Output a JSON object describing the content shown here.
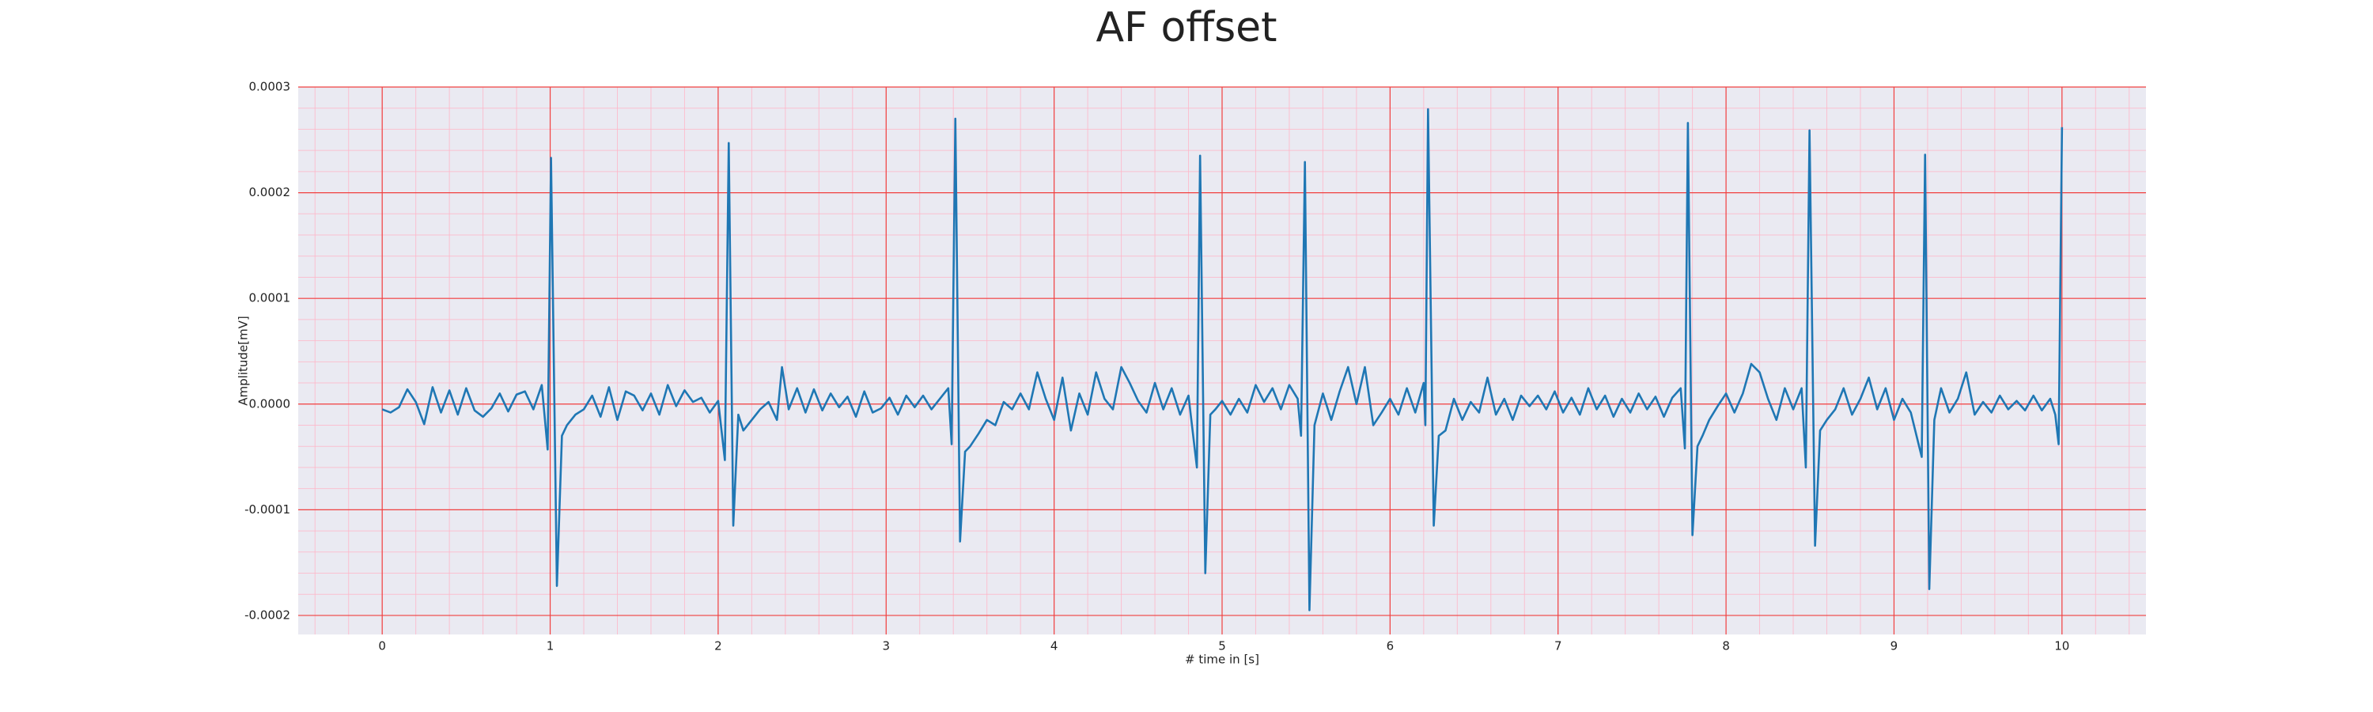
{
  "chart_data": {
    "type": "line",
    "title": "AF offset",
    "x_label": "# time in [s]",
    "y_label": "Amplitude[mV]",
    "color": "#1f77b4",
    "grid": true,
    "minor_grid": true,
    "xlim": [
      -0.5,
      10.5
    ],
    "ylim": [
      -0.000218,
      0.0003
    ],
    "xticks": [
      0,
      1,
      2,
      3,
      4,
      5,
      6,
      7,
      8,
      9,
      10
    ],
    "yticks": [
      -0.0002,
      -0.0001,
      {
        "value": 0,
        "label": "0.0000"
      },
      0.0001,
      0.0002,
      0.0003
    ],
    "x": [
      0,
      0.05,
      0.1,
      0.15,
      0.2,
      0.25,
      0.3,
      0.35,
      0.4,
      0.45,
      0.5,
      0.55,
      0.6,
      0.65,
      0.7,
      0.75,
      0.8,
      0.85,
      0.9,
      0.95,
      0.985,
      1.005,
      1.04,
      1.07,
      1.1,
      1.15,
      1.2,
      1.25,
      1.3,
      1.35,
      1.4,
      1.45,
      1.5,
      1.55,
      1.6,
      1.65,
      1.7,
      1.75,
      1.8,
      1.85,
      1.9,
      1.95,
      2.0,
      2.04,
      2.063,
      2.09,
      2.12,
      2.15,
      2.2,
      2.25,
      2.3,
      2.35,
      2.38,
      2.42,
      2.47,
      2.52,
      2.57,
      2.62,
      2.67,
      2.72,
      2.77,
      2.82,
      2.87,
      2.92,
      2.97,
      3.02,
      3.07,
      3.12,
      3.17,
      3.22,
      3.27,
      3.32,
      3.37,
      3.39,
      3.412,
      3.44,
      3.47,
      3.5,
      3.55,
      3.6,
      3.65,
      3.7,
      3.75,
      3.8,
      3.85,
      3.9,
      3.95,
      4.0,
      4.05,
      4.1,
      4.15,
      4.2,
      4.25,
      4.3,
      4.35,
      4.4,
      4.45,
      4.5,
      4.55,
      4.6,
      4.65,
      4.7,
      4.75,
      4.8,
      4.85,
      4.869,
      4.9,
      4.93,
      4.96,
      5.0,
      5.05,
      5.1,
      5.15,
      5.2,
      5.25,
      5.3,
      5.35,
      5.4,
      5.45,
      5.47,
      5.493,
      5.52,
      5.55,
      5.6,
      5.65,
      5.7,
      5.75,
      5.8,
      5.85,
      5.9,
      5.95,
      6.0,
      6.05,
      6.1,
      6.15,
      6.2,
      6.21,
      6.226,
      6.26,
      6.29,
      6.33,
      6.38,
      6.43,
      6.48,
      6.53,
      6.58,
      6.63,
      6.68,
      6.73,
      6.78,
      6.83,
      6.88,
      6.93,
      6.98,
      7.03,
      7.08,
      7.13,
      7.18,
      7.23,
      7.28,
      7.33,
      7.38,
      7.43,
      7.48,
      7.53,
      7.58,
      7.63,
      7.68,
      7.73,
      7.755,
      7.773,
      7.8,
      7.83,
      7.86,
      7.9,
      7.95,
      8.0,
      8.05,
      8.1,
      8.15,
      8.2,
      8.25,
      8.3,
      8.35,
      8.4,
      8.45,
      8.475,
      8.497,
      8.53,
      8.56,
      8.6,
      8.65,
      8.7,
      8.75,
      8.8,
      8.85,
      8.9,
      8.95,
      9.0,
      9.05,
      9.1,
      9.165,
      9.185,
      9.21,
      9.24,
      9.28,
      9.33,
      9.38,
      9.43,
      9.48,
      9.53,
      9.58,
      9.63,
      9.68,
      9.73,
      9.78,
      9.83,
      9.88,
      9.93,
      9.96,
      9.98,
      10.0
    ],
    "values": [
      -5e-06,
      -8e-06,
      -3e-06,
      1.4e-05,
      2e-06,
      -1.9e-05,
      1.6e-05,
      -8e-06,
      1.3e-05,
      -1e-05,
      1.5e-05,
      -6e-06,
      -1.2e-05,
      -4e-06,
      1e-05,
      -7e-06,
      9e-06,
      1.2e-05,
      -5e-06,
      1.8e-05,
      -4.3e-05,
      0.000233,
      -0.000172,
      -3e-05,
      -2e-05,
      -1e-05,
      -5e-06,
      8e-06,
      -1.2e-05,
      1.6e-05,
      -1.5e-05,
      1.2e-05,
      8e-06,
      -6e-06,
      1e-05,
      -1e-05,
      1.8e-05,
      -2e-06,
      1.3e-05,
      2e-06,
      6e-06,
      -8e-06,
      3e-06,
      -5.3e-05,
      0.000247,
      -0.000115,
      -1e-05,
      -2.5e-05,
      -1.5e-05,
      -5e-06,
      2e-06,
      -1.5e-05,
      3.5e-05,
      -5e-06,
      1.5e-05,
      -8e-06,
      1.4e-05,
      -6e-06,
      1e-05,
      -3e-06,
      7e-06,
      -1.2e-05,
      1.2e-05,
      -8e-06,
      -4e-06,
      6e-06,
      -1e-05,
      8e-06,
      -3e-06,
      8e-06,
      -5e-06,
      5e-06,
      1.5e-05,
      -3.8e-05,
      0.00027,
      -0.00013,
      -4.5e-05,
      -4e-05,
      -2.8e-05,
      -1.5e-05,
      -2e-05,
      2e-06,
      -5e-06,
      1e-05,
      -5e-06,
      3e-05,
      5e-06,
      -1.5e-05,
      2.5e-05,
      -2.5e-05,
      1e-05,
      -1e-05,
      3e-05,
      5e-06,
      -5e-06,
      3.5e-05,
      2e-05,
      3e-06,
      -8e-06,
      2e-05,
      -5e-06,
      1.5e-05,
      -1e-05,
      8e-06,
      -6e-05,
      0.000235,
      -0.00016,
      -1e-05,
      -5e-06,
      3e-06,
      -1e-05,
      5e-06,
      -8e-06,
      1.8e-05,
      2e-06,
      1.5e-05,
      -5e-06,
      1.8e-05,
      5e-06,
      -3e-05,
      0.000229,
      -0.000195,
      -2e-05,
      1e-05,
      -1.5e-05,
      1.2e-05,
      3.5e-05,
      0.0,
      3.5e-05,
      -2e-05,
      -8e-06,
      5e-06,
      -1e-05,
      1.5e-05,
      -8e-06,
      2e-05,
      -2e-05,
      0.000279,
      -0.000115,
      -3e-05,
      -2.5e-05,
      5e-06,
      -1.5e-05,
      2e-06,
      -8e-06,
      2.5e-05,
      -1e-05,
      5e-06,
      -1.5e-05,
      8e-06,
      -2e-06,
      8e-06,
      -5e-06,
      1.2e-05,
      -8e-06,
      6e-06,
      -1e-05,
      1.5e-05,
      -5e-06,
      8e-06,
      -1.2e-05,
      5e-06,
      -8e-06,
      1e-05,
      -5e-06,
      7e-06,
      -1.2e-05,
      6e-06,
      1.5e-05,
      -4.2e-05,
      0.000266,
      -0.000124,
      -4e-05,
      -3e-05,
      -1.5e-05,
      -2e-06,
      1e-05,
      -8e-06,
      1e-05,
      3.8e-05,
      3e-05,
      5e-06,
      -1.5e-05,
      1.5e-05,
      -5e-06,
      1.5e-05,
      -6e-05,
      0.000259,
      -0.000134,
      -2.5e-05,
      -1.5e-05,
      -5e-06,
      1.5e-05,
      -1e-05,
      5e-06,
      2.5e-05,
      -5e-06,
      1.5e-05,
      -1.5e-05,
      5e-06,
      -8e-06,
      -5e-05,
      0.000236,
      -0.000175,
      -1.5e-05,
      1.5e-05,
      -8e-06,
      5e-06,
      3e-05,
      -1e-05,
      2e-06,
      -8e-06,
      8e-06,
      -5e-06,
      3e-06,
      -6e-06,
      8e-06,
      -6e-06,
      5e-06,
      -1e-05,
      -3.8e-05,
      0.000262
    ]
  }
}
